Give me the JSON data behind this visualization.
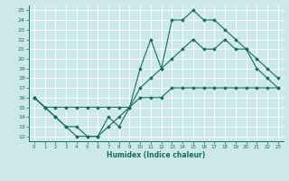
{
  "xlabel": "Humidex (Indice chaleur)",
  "bg_color": "#cce8e8",
  "line_color": "#1a6b5a",
  "xlim": [
    -0.5,
    23.5
  ],
  "ylim": [
    11.5,
    25.5
  ],
  "xticks": [
    0,
    1,
    2,
    3,
    4,
    5,
    6,
    7,
    8,
    9,
    10,
    11,
    12,
    13,
    14,
    15,
    16,
    17,
    18,
    19,
    20,
    21,
    22,
    23
  ],
  "yticks": [
    12,
    13,
    14,
    15,
    16,
    17,
    18,
    19,
    20,
    21,
    22,
    23,
    24,
    25
  ],
  "series": [
    [
      16,
      15,
      14,
      13,
      12,
      12,
      12,
      14,
      13,
      15,
      19,
      22,
      19,
      24,
      24,
      25,
      24,
      24,
      23,
      22,
      21,
      19,
      18,
      17
    ],
    [
      16,
      15,
      14,
      13,
      13,
      12,
      12,
      13,
      14,
      15,
      17,
      18,
      19,
      20,
      21,
      22,
      21,
      21,
      22,
      21,
      21,
      20,
      19,
      18
    ],
    [
      16,
      15,
      15,
      15,
      15,
      15,
      15,
      15,
      15,
      15,
      16,
      16,
      16,
      17,
      17,
      17,
      17,
      17,
      17,
      17,
      17,
      17,
      17,
      17
    ]
  ]
}
